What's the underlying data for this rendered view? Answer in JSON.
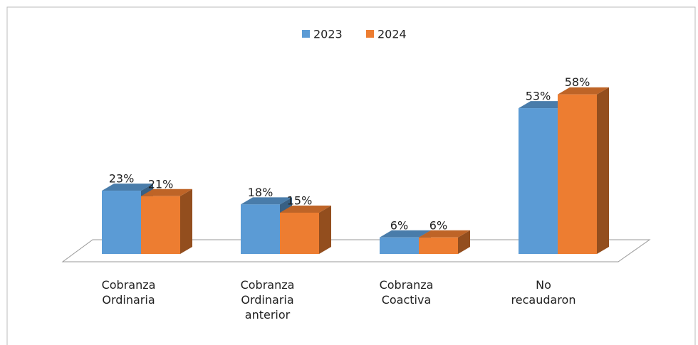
{
  "chart_data": {
    "type": "bar3d",
    "categories": [
      "Cobranza Ordinaria",
      "Cobranza Ordinaria anterior",
      "Cobranza Coactiva",
      "No recaudaron"
    ],
    "series": [
      {
        "name": "2023",
        "color": "#5b9bd5",
        "values": [
          23,
          18,
          6,
          53
        ],
        "value_labels": [
          "23%",
          "18%",
          "6%",
          "53%"
        ]
      },
      {
        "name": "2024",
        "color": "#ed7d31",
        "values": [
          21,
          15,
          6,
          58
        ],
        "value_labels": [
          "21%",
          "15%",
          "6%",
          "58%"
        ]
      }
    ],
    "ylim": [
      0,
      60
    ],
    "legend": "top"
  }
}
